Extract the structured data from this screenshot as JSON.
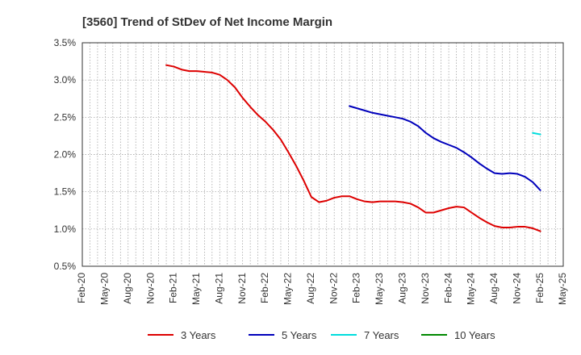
{
  "chart_data": {
    "type": "line",
    "title": "[3560]  Trend of StDev of Net Income Margin",
    "xlabel": "",
    "ylabel": "",
    "x_ticks": [
      "Feb-20",
      "May-20",
      "Aug-20",
      "Nov-20",
      "Feb-21",
      "May-21",
      "Aug-21",
      "Nov-21",
      "Feb-22",
      "May-22",
      "Aug-22",
      "Nov-22",
      "Feb-23",
      "May-23",
      "Aug-23",
      "Nov-23",
      "Feb-24",
      "May-24",
      "Aug-24",
      "Nov-24",
      "Feb-25",
      "May-25"
    ],
    "y_ticks": [
      "0.5%",
      "1.0%",
      "1.5%",
      "2.0%",
      "2.5%",
      "3.0%",
      "3.5%"
    ],
    "ylim": [
      0.5,
      3.5
    ],
    "grid": true,
    "legend_position": "bottom",
    "series": [
      {
        "name": "3 Years",
        "color": "#dd0000",
        "points": [
          [
            "Jan-21",
            3.2
          ],
          [
            "Feb-21",
            3.18
          ],
          [
            "Mar-21",
            3.14
          ],
          [
            "Apr-21",
            3.12
          ],
          [
            "May-21",
            3.12
          ],
          [
            "Jun-21",
            3.11
          ],
          [
            "Jul-21",
            3.1
          ],
          [
            "Aug-21",
            3.07
          ],
          [
            "Sep-21",
            3.0
          ],
          [
            "Oct-21",
            2.9
          ],
          [
            "Nov-21",
            2.76
          ],
          [
            "Dec-21",
            2.64
          ],
          [
            "Jan-22",
            2.53
          ],
          [
            "Feb-22",
            2.44
          ],
          [
            "Mar-22",
            2.33
          ],
          [
            "Apr-22",
            2.2
          ],
          [
            "May-22",
            2.03
          ],
          [
            "Jun-22",
            1.85
          ],
          [
            "Jul-22",
            1.65
          ],
          [
            "Aug-22",
            1.43
          ],
          [
            "Sep-22",
            1.36
          ],
          [
            "Oct-22",
            1.38
          ],
          [
            "Nov-22",
            1.42
          ],
          [
            "Dec-22",
            1.44
          ],
          [
            "Jan-23",
            1.44
          ],
          [
            "Feb-23",
            1.4
          ],
          [
            "Mar-23",
            1.37
          ],
          [
            "Apr-23",
            1.36
          ],
          [
            "May-23",
            1.37
          ],
          [
            "Jun-23",
            1.37
          ],
          [
            "Jul-23",
            1.37
          ],
          [
            "Aug-23",
            1.36
          ],
          [
            "Sep-23",
            1.34
          ],
          [
            "Oct-23",
            1.29
          ],
          [
            "Nov-23",
            1.22
          ],
          [
            "Dec-23",
            1.22
          ],
          [
            "Jan-24",
            1.25
          ],
          [
            "Feb-24",
            1.28
          ],
          [
            "Mar-24",
            1.3
          ],
          [
            "Apr-24",
            1.29
          ],
          [
            "May-24",
            1.22
          ],
          [
            "Jun-24",
            1.15
          ],
          [
            "Jul-24",
            1.09
          ],
          [
            "Aug-24",
            1.04
          ],
          [
            "Sep-24",
            1.02
          ],
          [
            "Oct-24",
            1.02
          ],
          [
            "Nov-24",
            1.03
          ],
          [
            "Dec-24",
            1.03
          ],
          [
            "Jan-25",
            1.01
          ],
          [
            "Feb-25",
            0.97
          ]
        ]
      },
      {
        "name": "5 Years",
        "color": "#0000bb",
        "points": [
          [
            "Jan-23",
            2.65
          ],
          [
            "Feb-23",
            2.62
          ],
          [
            "Mar-23",
            2.59
          ],
          [
            "Apr-23",
            2.56
          ],
          [
            "May-23",
            2.54
          ],
          [
            "Jun-23",
            2.52
          ],
          [
            "Jul-23",
            2.5
          ],
          [
            "Aug-23",
            2.48
          ],
          [
            "Sep-23",
            2.44
          ],
          [
            "Oct-23",
            2.38
          ],
          [
            "Nov-23",
            2.29
          ],
          [
            "Dec-23",
            2.22
          ],
          [
            "Jan-24",
            2.17
          ],
          [
            "Feb-24",
            2.13
          ],
          [
            "Mar-24",
            2.09
          ],
          [
            "Apr-24",
            2.03
          ],
          [
            "May-24",
            1.96
          ],
          [
            "Jun-24",
            1.88
          ],
          [
            "Jul-24",
            1.81
          ],
          [
            "Aug-24",
            1.75
          ],
          [
            "Sep-24",
            1.74
          ],
          [
            "Oct-24",
            1.75
          ],
          [
            "Nov-24",
            1.74
          ],
          [
            "Dec-24",
            1.7
          ],
          [
            "Jan-25",
            1.63
          ],
          [
            "Feb-25",
            1.52
          ]
        ]
      },
      {
        "name": "7 Years",
        "color": "#00dddd",
        "points": [
          [
            "Jan-25",
            2.29
          ],
          [
            "Feb-25",
            2.27
          ]
        ]
      },
      {
        "name": "10 Years",
        "color": "#008800",
        "points": []
      }
    ]
  }
}
